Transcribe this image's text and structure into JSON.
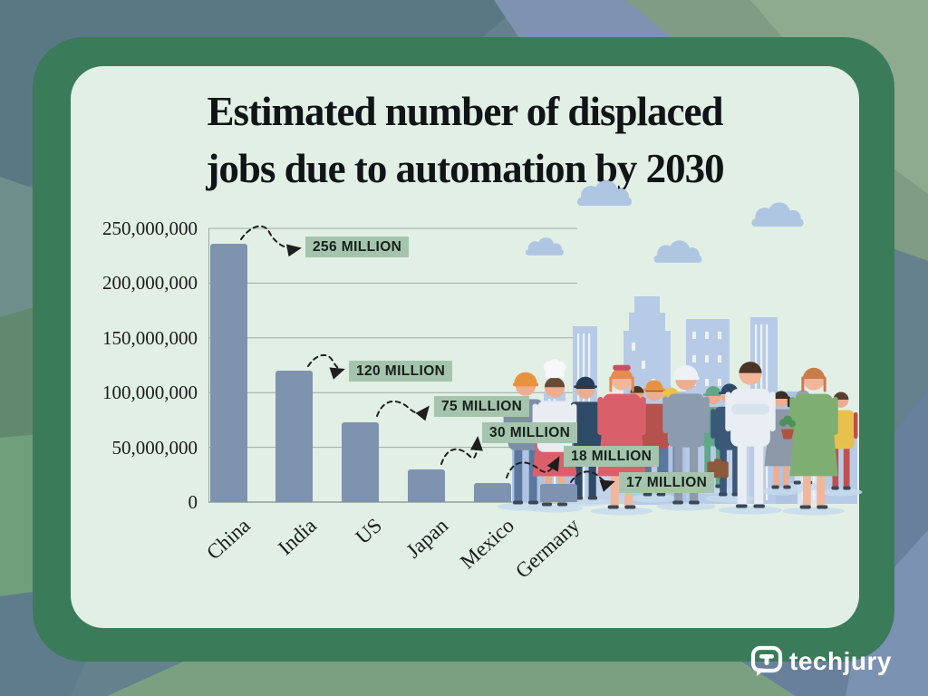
{
  "title": {
    "line1": "Estimated number of displaced",
    "line2": "jobs due to automation by 2030"
  },
  "chart_data": {
    "type": "bar",
    "title": "Estimated number of displaced jobs due to automation by 2030",
    "categories": [
      "China",
      "India",
      "US",
      "Japan",
      "Mexico",
      "Germany"
    ],
    "values": [
      256000000,
      120000000,
      75000000,
      30000000,
      18000000,
      17000000
    ],
    "data_labels": [
      "256 MILLION",
      "120 MILLION",
      "75 MILLION",
      "30 MILLION",
      "18 MILLION",
      "17 MILLION"
    ],
    "y_tick_labels": [
      "250,000,000",
      "200,000,000",
      "150,000,000",
      "100,000,000",
      "50,000,000",
      "0"
    ],
    "ylim": [
      0,
      250000000
    ],
    "grid": true,
    "legend": false,
    "tick_label_rotation_deg": -42,
    "bar_color": "#7E93AE",
    "callout_bg": "#A5C4AD",
    "bar_height_fractions": [
      0.945,
      0.481,
      0.293,
      0.119,
      0.071,
      0.065
    ]
  },
  "branding": {
    "logo_text": "techjury",
    "logo_icon": "speech-bubble-t-icon",
    "logo_color": "#FFFFFF"
  },
  "illustration": {
    "elements": [
      "cloud",
      "city-skyline",
      "workers-crowd"
    ],
    "description": "Pastel illustration of workers of various professions standing in front of a city skyline"
  },
  "colors": {
    "page_bg": "#64818D",
    "frame": "#3A7B5A",
    "panel_bg": "#E2EFE5",
    "grid_line": "#8E9B94",
    "text": "#111417",
    "illustration_blue": "#B5C9E6"
  }
}
